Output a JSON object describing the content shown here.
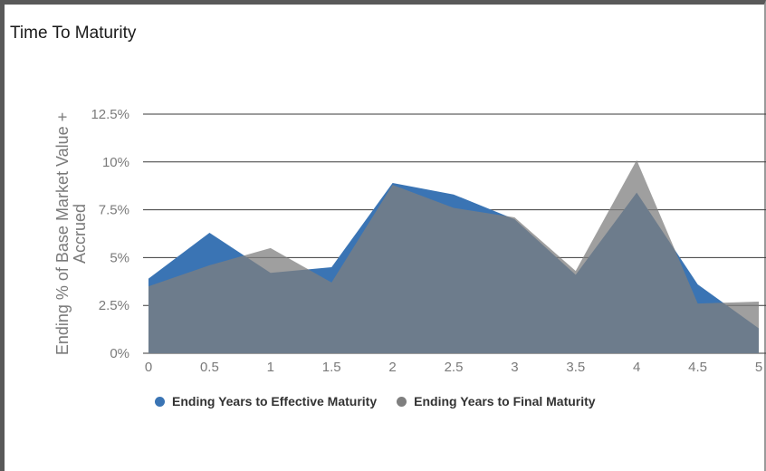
{
  "colors": {
    "effective": "#3a74b4",
    "final": "#7f7f7f",
    "overlap": "#627282"
  },
  "chart_data": {
    "type": "area",
    "title": "Time To Maturity",
    "ylabel": [
      "Ending % of Base Market Value +",
      "Accrued"
    ],
    "xlabel": "",
    "x": [
      0,
      0.5,
      1,
      1.5,
      2,
      2.5,
      3,
      3.5,
      4,
      4.5,
      5
    ],
    "x_ticks": [
      "0",
      "0.5",
      "1",
      "1.5",
      "2",
      "2.5",
      "3",
      "3.5",
      "4",
      "4.5",
      "5"
    ],
    "y_ticks": [
      "0%",
      "2.5%",
      "5%",
      "7.5%",
      "10%",
      "12.5%"
    ],
    "y_tick_values": [
      0,
      2.5,
      5,
      7.5,
      10,
      12.5
    ],
    "ylim": [
      0,
      12.5
    ],
    "xlim": [
      0,
      5
    ],
    "grid": true,
    "legend_position": "bottom",
    "series": [
      {
        "name": "Ending Years to Effective Maturity",
        "values": [
          3.9,
          6.3,
          4.2,
          4.5,
          8.9,
          8.3,
          7.0,
          4.1,
          8.4,
          3.6,
          1.3
        ]
      },
      {
        "name": "Ending Years to Final Maturity",
        "values": [
          3.5,
          4.6,
          5.5,
          3.7,
          8.8,
          7.6,
          7.1,
          4.3,
          10.1,
          2.6,
          2.7
        ]
      }
    ]
  }
}
